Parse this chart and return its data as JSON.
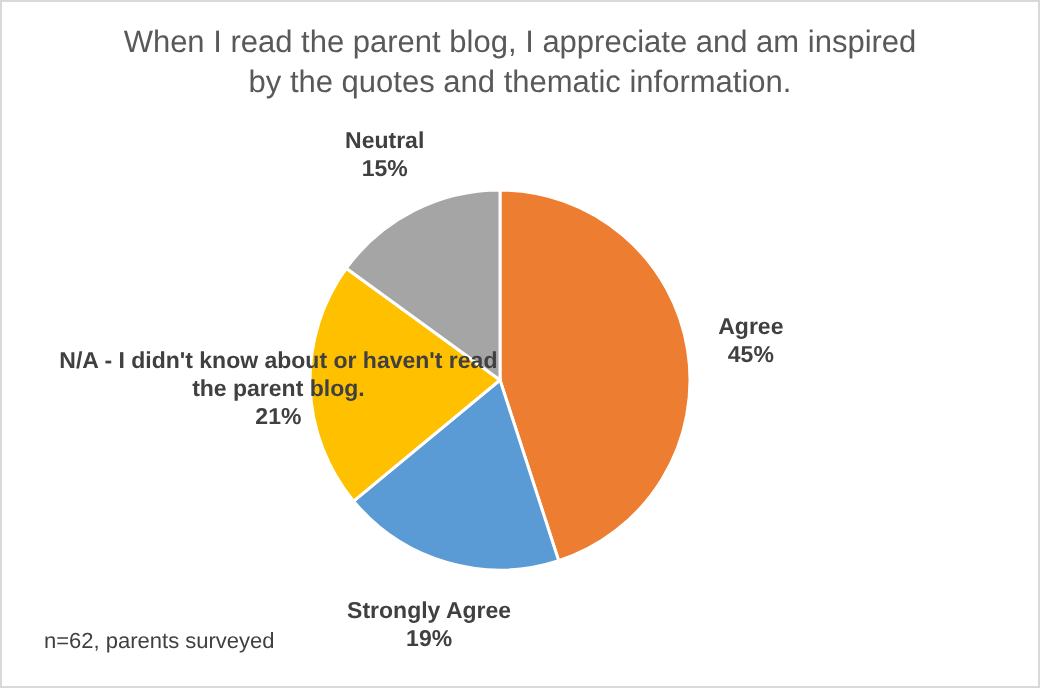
{
  "chart_data": {
    "type": "pie",
    "title": "When I read the parent blog, I appreciate and am inspired by the quotes and thematic information.",
    "categories": [
      "Agree",
      "Strongly Agree",
      "N/A - I didn't know about or haven't read the parent blog.",
      "Neutral"
    ],
    "values": [
      45,
      19,
      21,
      15
    ],
    "colors": [
      "#ed7d31",
      "#5b9bd5",
      "#ffc000",
      "#a5a5a5"
    ],
    "value_labels": [
      "45%",
      "19%",
      "21%",
      "15%"
    ],
    "annotations": [
      "n=62, parents surveyed"
    ]
  }
}
